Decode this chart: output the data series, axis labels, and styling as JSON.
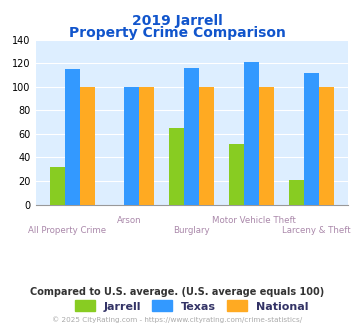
{
  "title_line1": "2019 Jarrell",
  "title_line2": "Property Crime Comparison",
  "categories": [
    "All Property Crime",
    "Arson",
    "Burglary",
    "Motor Vehicle Theft",
    "Larceny & Theft"
  ],
  "jarrell": [
    32,
    0,
    65,
    51,
    21
  ],
  "texas": [
    115,
    100,
    116,
    121,
    112
  ],
  "national": [
    100,
    100,
    100,
    100,
    100
  ],
  "color_jarrell": "#88cc22",
  "color_texas": "#3399ff",
  "color_national": "#ffaa22",
  "ylim": [
    0,
    140
  ],
  "yticks": [
    0,
    20,
    40,
    60,
    80,
    100,
    120,
    140
  ],
  "title_color": "#1155cc",
  "axes_bg": "#ddeeff",
  "xlabel_color_row1": "#aa88aa",
  "xlabel_color_row2": "#aa88aa",
  "footer_text": "Compared to U.S. average. (U.S. average equals 100)",
  "copyright_text": "© 2025 CityRating.com - https://www.cityrating.com/crime-statistics/",
  "footer_color": "#333333",
  "copyright_color": "#aaaaaa",
  "legend_labels": [
    "Jarrell",
    "Texas",
    "National"
  ],
  "legend_text_color": "#333366",
  "bar_width": 0.25,
  "row1_indices": [
    0,
    2,
    4
  ],
  "row2_indices": [
    1,
    3
  ],
  "row1_labels": [
    "All Property Crime",
    "Burglary",
    "Larceny & Theft"
  ],
  "row2_labels": [
    "Arson",
    "Motor Vehicle Theft"
  ]
}
